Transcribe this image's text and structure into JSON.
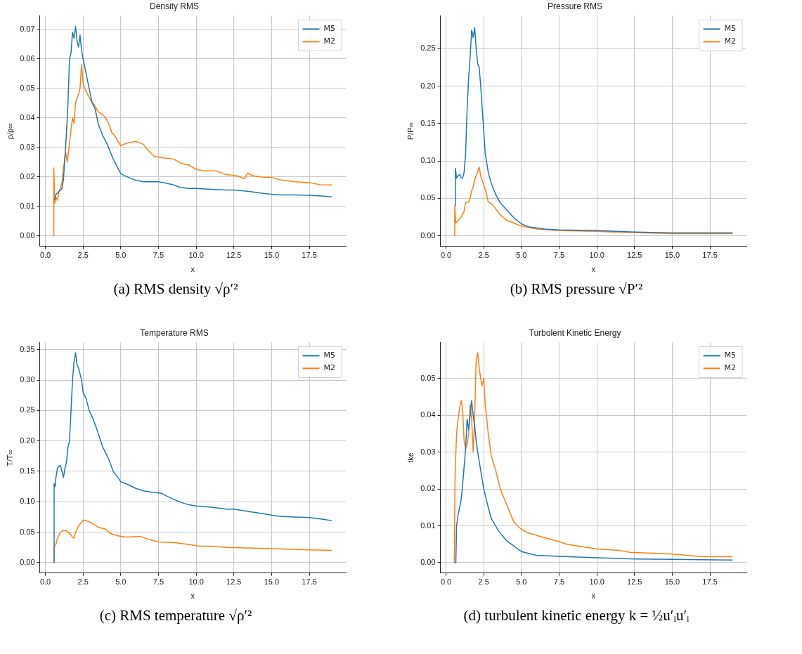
{
  "chart_data": [
    {
      "type": "line",
      "title": "Density RMS",
      "xlabel": "x",
      "ylabel": "ρ/ρ∞",
      "legend": "top right",
      "grid": true,
      "marker": "none",
      "xlim": [
        -0.37,
        19.92
      ],
      "xticks": [
        {
          "value": 0,
          "label": "0.0"
        },
        2.5,
        {
          "value": 5,
          "label": "5.0"
        },
        7.5,
        {
          "value": 10,
          "label": "10.0"
        },
        12.5,
        {
          "value": 15,
          "label": "15.0"
        },
        17.5
      ],
      "ylim": [
        -0.0036,
        0.0746
      ],
      "yticks": [
        {
          "value": 0,
          "label": "0.00"
        },
        0.01,
        0.02,
        0.03,
        0.04,
        0.05,
        0.06,
        0.07
      ],
      "annotations": [
        "(a) RMS density √ρ′²"
      ],
      "series": [
        {
          "name": "M5",
          "color": "#1f77b4",
          "x": [
            0.6,
            0.7,
            0.9,
            1.1,
            1.2,
            1.4,
            1.5,
            1.6,
            1.7,
            1.8,
            1.9,
            2.0,
            2.1,
            2.2,
            2.3,
            2.4,
            2.5,
            2.7,
            2.9,
            3.1,
            3.3,
            3.5,
            3.8,
            4.1,
            4.5,
            5.0,
            5.5,
            6.0,
            6.5,
            7.0,
            7.5,
            8.0,
            8.5,
            9.0,
            9.5,
            10.0,
            11.0,
            12.0,
            12.5,
            13.5,
            14.5,
            15.5,
            16.5,
            17.5,
            18.5,
            19.0
          ],
          "values": [
            0.012,
            0.014,
            0.015,
            0.016,
            0.019,
            0.035,
            0.045,
            0.06,
            0.062,
            0.069,
            0.067,
            0.071,
            0.066,
            0.064,
            0.068,
            0.063,
            0.06,
            0.055,
            0.05,
            0.045,
            0.043,
            0.038,
            0.034,
            0.031,
            0.026,
            0.021,
            0.0198,
            0.0188,
            0.0183,
            0.0183,
            0.0183,
            0.0178,
            0.0172,
            0.0163,
            0.016,
            0.016,
            0.0157,
            0.0155,
            0.0155,
            0.015,
            0.0143,
            0.0138,
            0.0138,
            0.0137,
            0.0134,
            0.0131
          ]
        },
        {
          "name": "M2",
          "color": "#ff7f0e",
          "x": [
            0.55,
            0.56,
            0.62,
            0.7,
            0.8,
            0.9,
            1.0,
            1.1,
            1.2,
            1.35,
            1.45,
            1.55,
            1.7,
            1.8,
            1.9,
            2.0,
            2.2,
            2.3,
            2.4,
            2.5,
            2.6,
            2.8,
            3.0,
            3.3,
            3.5,
            3.8,
            4.0,
            4.2,
            4.4,
            4.6,
            4.8,
            5.0,
            5.2,
            5.5,
            6.0,
            6.5,
            6.8,
            7.2,
            7.8,
            8.5,
            9.0,
            9.5,
            10.0,
            10.5,
            11.3,
            12.0,
            12.7,
            13.2,
            13.4,
            13.8,
            14.5,
            15.0,
            15.5,
            16.5,
            17.5,
            18.2,
            19.0
          ],
          "values": [
            0.0,
            0.023,
            0.011,
            0.013,
            0.012,
            0.015,
            0.016,
            0.018,
            0.023,
            0.028,
            0.025,
            0.029,
            0.036,
            0.04,
            0.038,
            0.045,
            0.048,
            0.05,
            0.058,
            0.052,
            0.05,
            0.048,
            0.046,
            0.044,
            0.042,
            0.041,
            0.04,
            0.038,
            0.035,
            0.034,
            0.032,
            0.0305,
            0.031,
            0.0315,
            0.032,
            0.031,
            0.029,
            0.027,
            0.0264,
            0.026,
            0.0245,
            0.024,
            0.0225,
            0.022,
            0.022,
            0.0207,
            0.0203,
            0.0193,
            0.0212,
            0.0203,
            0.0198,
            0.0198,
            0.019,
            0.0183,
            0.018,
            0.0173,
            0.0172
          ]
        }
      ]
    },
    {
      "type": "line",
      "title": "Pressure RMS",
      "xlabel": "x",
      "ylabel": "P/P∞",
      "legend": "top right",
      "grid": true,
      "marker": "none",
      "xlim": [
        -0.37,
        19.92
      ],
      "xticks": [
        {
          "value": 0,
          "label": "0.0"
        },
        2.5,
        {
          "value": 5,
          "label": "5.0"
        },
        7.5,
        {
          "value": 10,
          "label": "10.0"
        },
        12.5,
        {
          "value": 15,
          "label": "15.0"
        },
        17.5
      ],
      "ylim": [
        -0.014,
        0.294
      ],
      "yticks": [
        {
          "value": 0,
          "label": "0.00"
        },
        0.05,
        {
          "value": 0.1,
          "label": "0.10"
        },
        0.15,
        {
          "value": 0.2,
          "label": "0.20"
        },
        0.25
      ],
      "annotations": [
        "(b) RMS pressure √P′²"
      ],
      "series": [
        {
          "name": "M5",
          "color": "#1f77b4",
          "x": [
            0.6,
            0.62,
            0.7,
            0.8,
            0.9,
            1.0,
            1.1,
            1.2,
            1.3,
            1.4,
            1.5,
            1.6,
            1.7,
            1.8,
            1.9,
            2.0,
            2.1,
            2.2,
            2.3,
            2.4,
            2.5,
            2.6,
            2.8,
            3.0,
            3.3,
            3.6,
            4.0,
            4.5,
            5.0,
            5.5,
            6.5,
            7.5,
            10,
            12.5,
            15,
            19
          ],
          "values": [
            0.04,
            0.09,
            0.077,
            0.08,
            0.082,
            0.078,
            0.077,
            0.085,
            0.11,
            0.17,
            0.21,
            0.24,
            0.275,
            0.265,
            0.278,
            0.25,
            0.23,
            0.225,
            0.2,
            0.17,
            0.14,
            0.11,
            0.085,
            0.07,
            0.055,
            0.044,
            0.035,
            0.024,
            0.016,
            0.012,
            0.009,
            0.008,
            0.007,
            0.005,
            0.004,
            0.004
          ]
        },
        {
          "name": "M2",
          "color": "#ff7f0e",
          "x": [
            0.55,
            0.58,
            0.65,
            0.8,
            1.0,
            1.2,
            1.3,
            1.5,
            1.6,
            1.7,
            1.8,
            1.9,
            2.0,
            2.1,
            2.2,
            2.3,
            2.5,
            2.7,
            2.8,
            3.0,
            3.3,
            3.6,
            4.0,
            4.5,
            5.0,
            6.0,
            7.5,
            10,
            11,
            15,
            19
          ],
          "values": [
            0.0,
            0.04,
            0.017,
            0.02,
            0.025,
            0.033,
            0.045,
            0.045,
            0.05,
            0.06,
            0.065,
            0.075,
            0.08,
            0.085,
            0.092,
            0.08,
            0.068,
            0.055,
            0.045,
            0.043,
            0.036,
            0.028,
            0.021,
            0.017,
            0.013,
            0.009,
            0.007,
            0.006,
            0.005,
            0.003,
            0.003
          ]
        }
      ]
    },
    {
      "type": "line",
      "title": "Temperature RMS",
      "xlabel": "x",
      "ylabel": "T/T∞",
      "legend": "top right",
      "grid": true,
      "marker": "none",
      "xlim": [
        -0.37,
        19.92
      ],
      "xticks": [
        {
          "value": 0,
          "label": "0.0"
        },
        2.5,
        {
          "value": 5,
          "label": "5.0"
        },
        7.5,
        {
          "value": 10,
          "label": "10.0"
        },
        12.5,
        {
          "value": 15,
          "label": "15.0"
        },
        17.5
      ],
      "ylim": [
        -0.017,
        0.362
      ],
      "yticks": [
        {
          "value": 0,
          "label": "0.00"
        },
        0.05,
        {
          "value": 0.1,
          "label": "0.10"
        },
        0.15,
        {
          "value": 0.2,
          "label": "0.20"
        },
        0.25,
        {
          "value": 0.3,
          "label": "0.30"
        },
        0.35
      ],
      "annotations": [
        "(c) RMS temperature √ρ′²"
      ],
      "series": [
        {
          "name": "M5",
          "color": "#1f77b4",
          "x": [
            0.55,
            0.58,
            0.65,
            0.7,
            0.8,
            0.9,
            1.0,
            1.1,
            1.2,
            1.3,
            1.4,
            1.5,
            1.6,
            1.7,
            1.8,
            1.9,
            2.0,
            2.1,
            2.2,
            2.4,
            2.5,
            2.7,
            2.9,
            3.1,
            3.4,
            3.8,
            4.2,
            4.5,
            4.8,
            5.0,
            5.5,
            6.0,
            6.5,
            7.0,
            7.7,
            8.0,
            8.5,
            9.0,
            9.5,
            10.0,
            11.0,
            12.0,
            12.5,
            13.5,
            14.5,
            15.5,
            16.5,
            17.5,
            18.5,
            19.0
          ],
          "values": [
            0.0,
            0.13,
            0.125,
            0.14,
            0.155,
            0.158,
            0.16,
            0.15,
            0.14,
            0.155,
            0.165,
            0.19,
            0.2,
            0.25,
            0.3,
            0.33,
            0.345,
            0.325,
            0.32,
            0.3,
            0.28,
            0.27,
            0.25,
            0.24,
            0.22,
            0.19,
            0.17,
            0.15,
            0.14,
            0.133,
            0.128,
            0.122,
            0.118,
            0.116,
            0.114,
            0.11,
            0.104,
            0.099,
            0.095,
            0.093,
            0.091,
            0.088,
            0.088,
            0.084,
            0.08,
            0.076,
            0.075,
            0.074,
            0.071,
            0.069
          ]
        },
        {
          "name": "M2",
          "color": "#ff7f0e",
          "x": [
            0.55,
            0.58,
            0.7,
            0.8,
            1.0,
            1.2,
            1.4,
            1.6,
            1.8,
            1.9,
            2.0,
            2.2,
            2.5,
            2.7,
            3.0,
            3.5,
            4.0,
            4.3,
            4.8,
            5.3,
            6.3,
            7.0,
            7.5,
            8.5,
            9.5,
            10.2,
            11,
            12,
            15,
            17.5,
            19
          ],
          "values": [
            0.0,
            0.025,
            0.03,
            0.04,
            0.05,
            0.053,
            0.052,
            0.048,
            0.042,
            0.04,
            0.05,
            0.06,
            0.07,
            0.069,
            0.066,
            0.058,
            0.055,
            0.048,
            0.044,
            0.042,
            0.043,
            0.037,
            0.034,
            0.033,
            0.03,
            0.027,
            0.027,
            0.025,
            0.023,
            0.021,
            0.02
          ]
        }
      ]
    },
    {
      "type": "line",
      "title": "Turbolent Kinetic Energy",
      "xlabel": "x",
      "ylabel": "tke",
      "legend": "top right",
      "grid": true,
      "marker": "none",
      "xlim": [
        -0.37,
        19.92
      ],
      "xticks": [
        {
          "value": 0,
          "label": "0.0"
        },
        2.5,
        {
          "value": 5,
          "label": "5.0"
        },
        7.5,
        {
          "value": 10,
          "label": "10.0"
        },
        12.5,
        {
          "value": 15,
          "label": "15.0"
        },
        17.5
      ],
      "ylim": [
        -0.0028,
        0.0598
      ],
      "yticks": [
        {
          "value": 0,
          "label": "0.00"
        },
        0.01,
        0.02,
        0.03,
        0.04,
        0.05
      ],
      "annotations": [
        "(d) turbulent kinetic energy k = ½u′ᵢu′ᵢ"
      ],
      "series": [
        {
          "name": "M5",
          "color": "#1f77b4",
          "x": [
            0.55,
            0.65,
            0.7,
            0.8,
            0.9,
            1.0,
            1.1,
            1.2,
            1.3,
            1.4,
            1.5,
            1.6,
            1.7,
            1.8,
            1.9,
            2.0,
            2.1,
            2.3,
            2.5,
            2.8,
            3.0,
            3.5,
            4.0,
            4.5,
            5.0,
            6.0,
            7.5,
            10,
            12.5,
            15,
            19
          ],
          "values": [
            0.0,
            0.0,
            0.01,
            0.013,
            0.015,
            0.017,
            0.021,
            0.026,
            0.031,
            0.039,
            0.036,
            0.04,
            0.044,
            0.04,
            0.037,
            0.033,
            0.03,
            0.025,
            0.02,
            0.015,
            0.012,
            0.0085,
            0.006,
            0.0045,
            0.003,
            0.002,
            0.0017,
            0.0013,
            0.001,
            0.0009,
            0.0007
          ]
        },
        {
          "name": "M2",
          "color": "#ff7f0e",
          "x": [
            0.55,
            0.6,
            0.7,
            0.8,
            0.9,
            1.0,
            1.1,
            1.2,
            1.3,
            1.4,
            1.5,
            1.6,
            1.7,
            1.8,
            1.9,
            2.0,
            2.1,
            2.2,
            2.3,
            2.4,
            2.5,
            2.6,
            2.8,
            3.0,
            3.3,
            3.6,
            4.0,
            4.5,
            5.0,
            5.5,
            6.5,
            7.5,
            8,
            10,
            11.5,
            12.2,
            15,
            17,
            19
          ],
          "values": [
            0.0,
            0.024,
            0.035,
            0.039,
            0.042,
            0.044,
            0.042,
            0.033,
            0.031,
            0.032,
            0.035,
            0.043,
            0.039,
            0.03,
            0.04,
            0.055,
            0.057,
            0.053,
            0.05,
            0.048,
            0.05,
            0.043,
            0.035,
            0.029,
            0.025,
            0.02,
            0.016,
            0.011,
            0.009,
            0.008,
            0.0068,
            0.0057,
            0.005,
            0.0037,
            0.0033,
            0.0028,
            0.0023,
            0.0016,
            0.0016
          ]
        }
      ]
    }
  ]
}
